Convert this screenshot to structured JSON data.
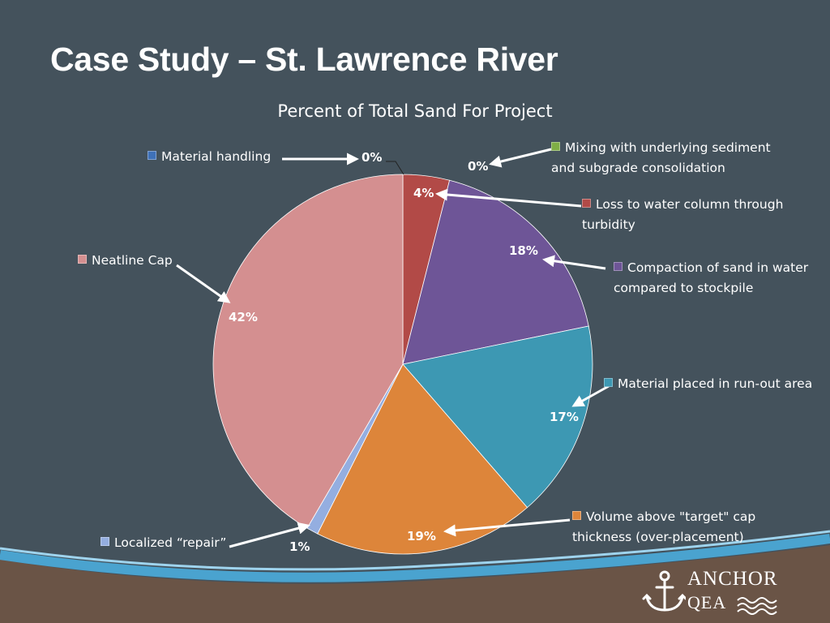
{
  "slide": {
    "title": "Case Study – St. Lawrence River"
  },
  "logo": {
    "line1": "ANCHOR",
    "line2": "QEA"
  },
  "chart_data": {
    "type": "pie",
    "title": "Percent of Total Sand For Project",
    "start_angle_deg": 0,
    "direction": "clockwise",
    "slices": [
      {
        "label": "Material handling",
        "value": 0,
        "display": "0%",
        "color": "#3f71b8"
      },
      {
        "label": "Mixing with underlying sediment and subgrade consolidation",
        "value": 0,
        "display": "0%",
        "color": "#7fae46"
      },
      {
        "label": "Loss to water column through turbidity",
        "value": 4,
        "display": "4%",
        "color": "#b24a47"
      },
      {
        "label": "Compaction of sand in water compared to stockpile",
        "value": 18,
        "display": "18%",
        "color": "#6e5597"
      },
      {
        "label": "Material placed in run-out area",
        "value": 17,
        "display": "17%",
        "color": "#3d98b3"
      },
      {
        "label": "Volume above \"target\" cap thickness (over-placement)",
        "value": 19,
        "display": "19%",
        "color": "#dd853a"
      },
      {
        "label": "Localized “repair”",
        "value": 1,
        "display": "1%",
        "color": "#94aee0"
      },
      {
        "label": "Neatline Cap",
        "value": 42,
        "display": "42%",
        "color": "#d48f90"
      }
    ],
    "legend": [
      {
        "lines": [
          "Material handling"
        ]
      },
      {
        "lines": [
          "Mixing with underlying sediment",
          "and subgrade consolidation"
        ]
      },
      {
        "lines": [
          "Loss to water column through",
          "turbidity"
        ]
      },
      {
        "lines": [
          "Compaction of sand in water",
          "compared to stockpile"
        ]
      },
      {
        "lines": [
          "Material placed in run-out area"
        ]
      },
      {
        "lines": [
          "Volume above \"target\" cap",
          "thickness (over-placement)"
        ]
      },
      {
        "lines": [
          "Localized “repair”"
        ]
      },
      {
        "lines": [
          "Neatline Cap"
        ]
      }
    ]
  }
}
